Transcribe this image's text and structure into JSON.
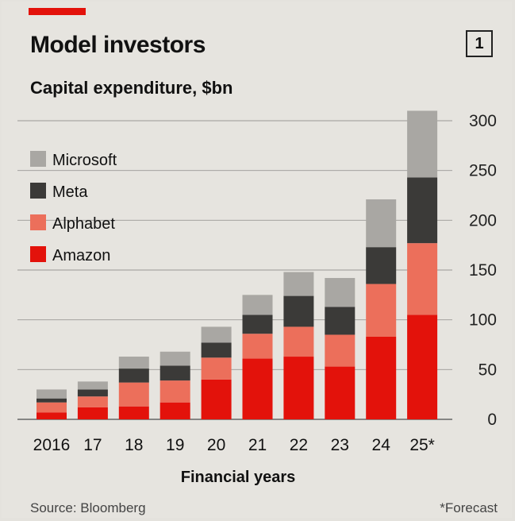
{
  "header": {
    "title": "Model investors",
    "subtitle": "Capital expenditure, $bn",
    "badge": "1"
  },
  "footer": {
    "source": "Source: Bloomberg",
    "note": "*Forecast"
  },
  "colors": {
    "accent": "#e3120b",
    "Amazon": "#e3120b",
    "Alphabet": "#ec6f5b",
    "Meta": "#3b3a38",
    "Microsoft": "#a9a7a3"
  },
  "chart_data": {
    "type": "bar",
    "stacked": true,
    "title": "Model investors",
    "subtitle": "Capital expenditure, $bn",
    "xlabel": "Financial years",
    "ylabel": "",
    "categories": [
      "2016",
      "17",
      "18",
      "19",
      "20",
      "21",
      "22",
      "23",
      "24",
      "25*"
    ],
    "ylim": [
      0,
      300
    ],
    "yticks": [
      0,
      50,
      100,
      150,
      200,
      250,
      300
    ],
    "y_axis_side": "right",
    "grid": true,
    "legend_position": "top-left",
    "legend_order": [
      "Microsoft",
      "Meta",
      "Alphabet",
      "Amazon"
    ],
    "series": [
      {
        "name": "Amazon",
        "values": [
          7,
          12,
          13,
          17,
          40,
          61,
          63,
          53,
          83,
          105
        ]
      },
      {
        "name": "Alphabet",
        "values": [
          10,
          11,
          24,
          22,
          22,
          25,
          30,
          32,
          53,
          72
        ]
      },
      {
        "name": "Meta",
        "values": [
          4,
          7,
          14,
          15,
          15,
          19,
          31,
          28,
          37,
          66
        ]
      },
      {
        "name": "Microsoft",
        "values": [
          9,
          8,
          12,
          14,
          16,
          20,
          24,
          29,
          48,
          67
        ]
      }
    ]
  }
}
